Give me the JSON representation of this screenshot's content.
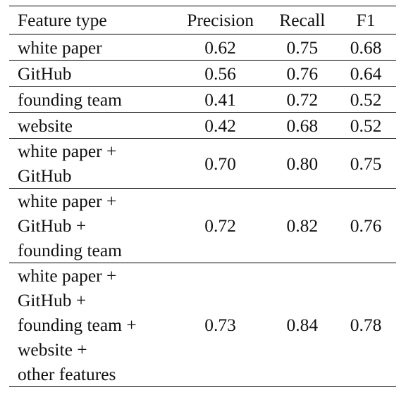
{
  "table": {
    "headers": {
      "feature_type": "Feature type",
      "precision": "Precision",
      "recall": "Recall",
      "f1": "F1"
    },
    "rows": [
      {
        "feature_lines": [
          "white paper"
        ],
        "precision": "0.62",
        "recall": "0.75",
        "f1": "0.68"
      },
      {
        "feature_lines": [
          "GitHub"
        ],
        "precision": "0.56",
        "recall": "0.76",
        "f1": "0.64"
      },
      {
        "feature_lines": [
          "founding team"
        ],
        "precision": "0.41",
        "recall": "0.72",
        "f1": "0.52"
      },
      {
        "feature_lines": [
          "website"
        ],
        "precision": "0.42",
        "recall": "0.68",
        "f1": "0.52"
      },
      {
        "feature_lines": [
          "white paper +",
          "GitHub"
        ],
        "precision": "0.70",
        "recall": "0.80",
        "f1": "0.75"
      },
      {
        "feature_lines": [
          "white paper +",
          "GitHub +",
          "founding team"
        ],
        "precision": "0.72",
        "recall": "0.82",
        "f1": "0.76"
      },
      {
        "feature_lines": [
          "white paper +",
          "GitHub +",
          "founding team +",
          "website +",
          "other features"
        ],
        "precision": "0.73",
        "recall": "0.84",
        "f1": "0.78"
      }
    ]
  }
}
